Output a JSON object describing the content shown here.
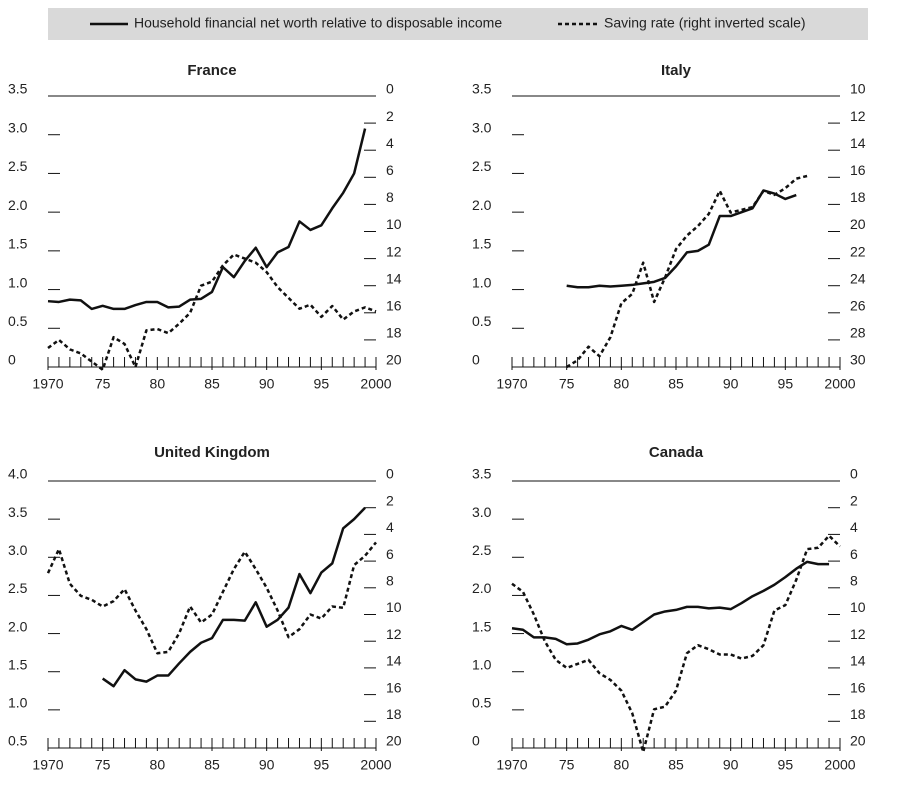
{
  "chart_data": [
    {
      "type": "line",
      "title": "France",
      "x": [
        1970,
        1971,
        1972,
        1973,
        1974,
        1975,
        1976,
        1977,
        1978,
        1979,
        1980,
        1981,
        1982,
        1983,
        1984,
        1985,
        1986,
        1987,
        1988,
        1989,
        1990,
        1991,
        1992,
        1993,
        1994,
        1995,
        1996,
        1997,
        1998,
        1999,
        2000
      ],
      "series": [
        {
          "name": "Household financial net worth relative to disposable income",
          "color": "#111111",
          "style": "solid",
          "values": [
            0.85,
            0.84,
            0.87,
            0.86,
            0.75,
            0.79,
            0.75,
            0.75,
            0.8,
            0.84,
            0.84,
            0.77,
            0.78,
            0.87,
            0.88,
            0.97,
            1.29,
            1.16,
            1.37,
            1.54,
            1.29,
            1.48,
            1.55,
            1.88,
            1.77,
            1.83,
            2.05,
            2.25,
            2.5,
            3.08,
            null
          ]
        },
        {
          "name": "Saving rate (right inverted scale)",
          "color": "#111111",
          "style": "dashed",
          "axis": "y2",
          "values": [
            18.6,
            18.0,
            18.7,
            19.0,
            19.6,
            20.2,
            17.8,
            18.3,
            20.0,
            17.3,
            17.2,
            17.5,
            16.8,
            16.0,
            14.0,
            13.7,
            12.5,
            11.7,
            12.0,
            12.3,
            13.0,
            14.1,
            14.9,
            15.7,
            15.4,
            16.3,
            15.5,
            16.5,
            15.9,
            15.6,
            15.9
          ]
        }
      ],
      "xlim": [
        1970,
        2000
      ],
      "xticks": [
        1970,
        {
          "value": 1975,
          "label": "75"
        },
        {
          "value": 1980,
          "label": "80"
        },
        {
          "value": 1985,
          "label": "85"
        },
        {
          "value": 1990,
          "label": "90"
        },
        {
          "value": 1995,
          "label": "95"
        },
        2000
      ],
      "ylim": [
        0,
        3.5
      ],
      "yticks": [
        0,
        0.5,
        {
          "value": 1,
          "label": "1.0"
        },
        1.5,
        {
          "value": 2,
          "label": "2.0"
        },
        2.5,
        {
          "value": 3,
          "label": "3.0"
        },
        3.5
      ],
      "y2lim": [
        20,
        0
      ],
      "y2ticks": [
        0,
        2,
        4,
        6,
        8,
        10,
        12,
        14,
        16,
        18,
        20
      ]
    },
    {
      "type": "line",
      "title": "Italy",
      "x": [
        1970,
        1971,
        1972,
        1973,
        1974,
        1975,
        1976,
        1977,
        1978,
        1979,
        1980,
        1981,
        1982,
        1983,
        1984,
        1985,
        1986,
        1987,
        1988,
        1989,
        1990,
        1991,
        1992,
        1993,
        1994,
        1995,
        1996,
        1997,
        1998,
        1999,
        2000
      ],
      "series": [
        {
          "color": "#111111",
          "style": "solid",
          "values": [
            null,
            null,
            null,
            null,
            null,
            1.05,
            1.03,
            1.03,
            1.05,
            1.04,
            1.05,
            1.06,
            1.08,
            1.1,
            1.15,
            1.3,
            1.48,
            1.5,
            1.58,
            1.95,
            1.95,
            2.0,
            2.05,
            2.28,
            2.24,
            2.17,
            2.22,
            null,
            null,
            null,
            null
          ]
        },
        {
          "color": "#111111",
          "style": "dashed",
          "axis": "y2",
          "values": [
            null,
            null,
            null,
            null,
            null,
            30.0,
            29.5,
            28.5,
            29.2,
            27.8,
            25.3,
            24.6,
            22.3,
            25.2,
            23.4,
            21.3,
            20.3,
            19.6,
            18.7,
            17.0,
            18.6,
            18.4,
            18.2,
            17.0,
            17.3,
            16.8,
            16.1,
            15.9,
            null,
            null,
            null
          ]
        }
      ],
      "xlim": [
        1970,
        2000
      ],
      "xticks": [
        1970,
        {
          "value": 1975,
          "label": "75"
        },
        {
          "value": 1980,
          "label": "80"
        },
        {
          "value": 1985,
          "label": "85"
        },
        {
          "value": 1990,
          "label": "90"
        },
        {
          "value": 1995,
          "label": "95"
        },
        2000
      ],
      "ylim": [
        0,
        3.5
      ],
      "yticks": [
        0,
        0.5,
        {
          "value": 1,
          "label": "1.0"
        },
        1.5,
        {
          "value": 2,
          "label": "2.0"
        },
        2.5,
        {
          "value": 3,
          "label": "3.0"
        },
        3.5
      ],
      "y2lim": [
        30,
        10
      ],
      "y2ticks": [
        10,
        12,
        14,
        16,
        18,
        20,
        22,
        24,
        26,
        28,
        30
      ]
    },
    {
      "type": "line",
      "title": "United Kingdom",
      "x": [
        1970,
        1971,
        1972,
        1973,
        1974,
        1975,
        1976,
        1977,
        1978,
        1979,
        1980,
        1981,
        1982,
        1983,
        1984,
        1985,
        1986,
        1987,
        1988,
        1989,
        1990,
        1991,
        1992,
        1993,
        1994,
        1995,
        1996,
        1997,
        1998,
        1999,
        2000
      ],
      "series": [
        {
          "color": "#111111",
          "style": "solid",
          "values": [
            null,
            null,
            null,
            null,
            null,
            1.41,
            1.31,
            1.52,
            1.4,
            1.37,
            1.45,
            1.45,
            1.61,
            1.76,
            1.88,
            1.94,
            2.18,
            2.18,
            2.17,
            2.41,
            2.09,
            2.18,
            2.34,
            2.78,
            2.53,
            2.8,
            2.92,
            3.38,
            3.5,
            3.65,
            null
          ]
        },
        {
          "color": "#111111",
          "style": "dashed",
          "axis": "y2",
          "values": [
            6.9,
            5.1,
            7.7,
            8.6,
            8.9,
            9.4,
            9.0,
            8.1,
            9.7,
            11.1,
            12.9,
            12.8,
            11.4,
            9.4,
            10.6,
            10.0,
            8.3,
            6.6,
            5.3,
            6.6,
            8.0,
            9.7,
            11.7,
            11.1,
            10.0,
            10.3,
            9.4,
            9.5,
            6.3,
            5.6,
            4.6
          ]
        }
      ],
      "xlim": [
        1970,
        2000
      ],
      "xticks": [
        1970,
        {
          "value": 1975,
          "label": "75"
        },
        {
          "value": 1980,
          "label": "80"
        },
        {
          "value": 1985,
          "label": "85"
        },
        {
          "value": 1990,
          "label": "90"
        },
        {
          "value": 1995,
          "label": "95"
        },
        2000
      ],
      "ylim": [
        0.5,
        4
      ],
      "yticks": [
        0.5,
        {
          "value": 1,
          "label": "1.0"
        },
        1.5,
        {
          "value": 2,
          "label": "2.0"
        },
        2.5,
        {
          "value": 3,
          "label": "3.0"
        },
        3.5,
        {
          "value": 4,
          "label": "4.0"
        }
      ],
      "y2lim": [
        20,
        0
      ],
      "y2ticks": [
        0,
        2,
        4,
        6,
        8,
        10,
        12,
        14,
        16,
        18,
        20
      ]
    },
    {
      "type": "line",
      "title": "Canada",
      "x": [
        1970,
        1971,
        1972,
        1973,
        1974,
        1975,
        1976,
        1977,
        1978,
        1979,
        1980,
        1981,
        1982,
        1983,
        1984,
        1985,
        1986,
        1987,
        1988,
        1989,
        1990,
        1991,
        1992,
        1993,
        1994,
        1995,
        1996,
        1997,
        1998,
        1999,
        2000
      ],
      "series": [
        {
          "color": "#111111",
          "style": "solid",
          "values": [
            1.57,
            1.55,
            1.45,
            1.45,
            1.43,
            1.36,
            1.37,
            1.42,
            1.49,
            1.53,
            1.6,
            1.55,
            1.65,
            1.75,
            1.79,
            1.81,
            1.85,
            1.85,
            1.83,
            1.84,
            1.82,
            1.9,
            1.99,
            2.06,
            2.14,
            2.24,
            2.35,
            2.44,
            2.41,
            2.41,
            null
          ]
        },
        {
          "color": "#111111",
          "style": "dashed",
          "axis": "y2",
          "values": [
            7.7,
            8.3,
            10.0,
            12.0,
            13.4,
            14.0,
            13.7,
            13.4,
            14.4,
            14.9,
            15.7,
            17.4,
            20.3,
            17.1,
            16.9,
            15.7,
            12.9,
            12.3,
            12.6,
            13.0,
            13.0,
            13.3,
            13.1,
            12.3,
            9.7,
            9.3,
            7.4,
            5.1,
            5.0,
            4.1,
            4.9
          ]
        }
      ],
      "xlim": [
        1970,
        2000
      ],
      "xticks": [
        1970,
        {
          "value": 1975,
          "label": "75"
        },
        {
          "value": 1980,
          "label": "80"
        },
        {
          "value": 1985,
          "label": "85"
        },
        {
          "value": 1990,
          "label": "90"
        },
        {
          "value": 1995,
          "label": "95"
        },
        2000
      ],
      "ylim": [
        0,
        3.5
      ],
      "yticks": [
        0,
        0.5,
        {
          "value": 1,
          "label": "1.0"
        },
        1.5,
        {
          "value": 2,
          "label": "2.0"
        },
        2.5,
        {
          "value": 3,
          "label": "3.0"
        },
        3.5
      ],
      "y2lim": [
        20,
        0
      ],
      "y2ticks": [
        0,
        2,
        4,
        6,
        8,
        10,
        12,
        14,
        16,
        18,
        20
      ]
    }
  ]
}
